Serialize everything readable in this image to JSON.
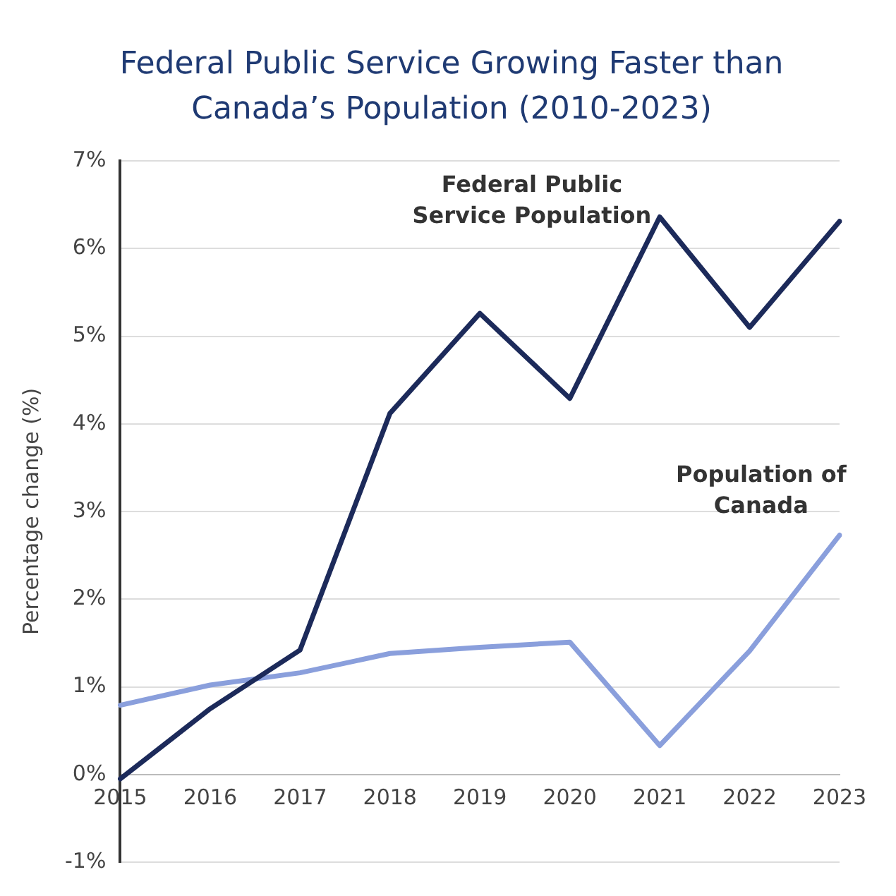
{
  "chart_data": {
    "type": "line",
    "title": "Federal Public Service Growing Faster than Canada’s Population (2010-2023)",
    "ylabel": "Percentage change (%)",
    "categories": [
      "2015",
      "2016",
      "2017",
      "2018",
      "2019",
      "2020",
      "2021",
      "2022",
      "2023"
    ],
    "series": [
      {
        "name": "Federal Public Service Population",
        "color": "#1c2a5a",
        "values": [
          -0.05,
          0.75,
          1.42,
          4.12,
          5.26,
          4.29,
          6.36,
          5.1,
          6.31
        ]
      },
      {
        "name": "Population of Canada",
        "color": "#8a9fdc",
        "values": [
          0.79,
          1.02,
          1.16,
          1.38,
          1.45,
          1.51,
          0.33,
          1.41,
          2.73
        ]
      }
    ],
    "ylim": [
      -1,
      7
    ],
    "yticks": [
      {
        "value": -1,
        "label": "-1%"
      },
      {
        "value": 0,
        "label": "0%"
      },
      {
        "value": 1,
        "label": "1%"
      },
      {
        "value": 2,
        "label": "2%"
      },
      {
        "value": 3,
        "label": "3%"
      },
      {
        "value": 4,
        "label": "4%"
      },
      {
        "value": 5,
        "label": "5%"
      },
      {
        "value": 6,
        "label": "6%"
      },
      {
        "value": 7,
        "label": "7%"
      }
    ],
    "grid": "y",
    "legend": false,
    "marker": "none",
    "line_style": "solid"
  }
}
